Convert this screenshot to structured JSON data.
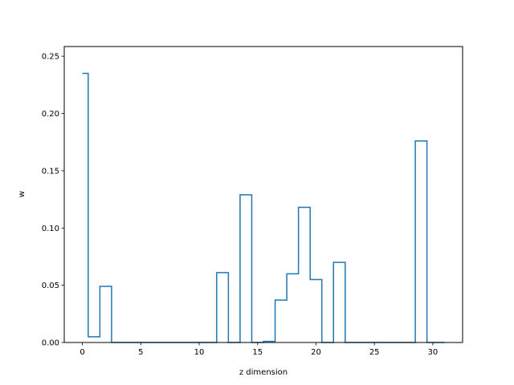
{
  "chart_data": {
    "type": "line",
    "drawstyle": "steps-mid",
    "title": "",
    "xlabel": "z dimension",
    "ylabel": "w",
    "xlim": [
      -1.55,
      32.55
    ],
    "ylim": [
      0,
      0.2585
    ],
    "xticks": [
      0,
      5,
      10,
      15,
      20,
      25,
      30
    ],
    "yticks": [
      0.0,
      0.05,
      0.1,
      0.15,
      0.2,
      0.25
    ],
    "ytick_labels": [
      "0.00",
      "0.05",
      "0.10",
      "0.15",
      "0.20",
      "0.25"
    ],
    "grid": false,
    "legend": "none",
    "color": "#1f77b4",
    "x": [
      0,
      1,
      2,
      3,
      4,
      5,
      6,
      7,
      8,
      9,
      10,
      11,
      12,
      13,
      14,
      15,
      16,
      17,
      18,
      19,
      20,
      21,
      22,
      23,
      24,
      25,
      26,
      27,
      28,
      29,
      30,
      31
    ],
    "y": [
      0.235,
      0.005,
      0.049,
      0,
      0,
      0,
      0,
      0,
      0,
      0,
      0,
      0,
      0.061,
      0,
      0.129,
      0,
      0.001,
      0.037,
      0.06,
      0.118,
      0.055,
      0,
      0.07,
      0,
      0,
      0,
      0,
      0,
      0,
      0.176,
      0,
      0
    ]
  }
}
